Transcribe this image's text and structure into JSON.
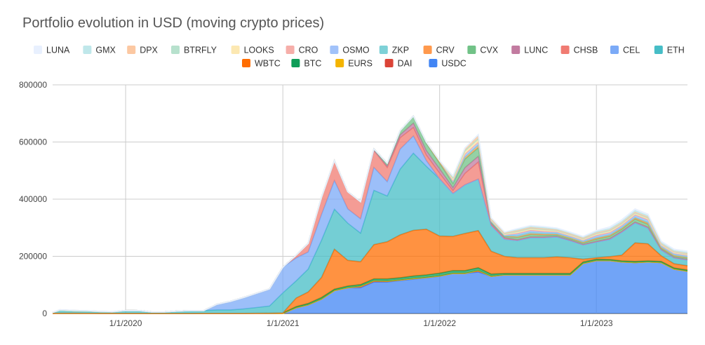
{
  "chart_data": {
    "type": "area",
    "stacked": true,
    "title": "Portfolio evolution in USD (moving crypto prices)",
    "xlabel": "",
    "ylabel": "",
    "ylim": [
      0,
      800000
    ],
    "y_ticks": [
      "0",
      "200000",
      "400000",
      "600000",
      "800000"
    ],
    "x_ticks": [
      "1/1/2020",
      "1/1/2021",
      "1/1/2022",
      "1/1/2023"
    ],
    "xlim": [
      "2019-07-15",
      "2023-08-01"
    ],
    "grid": true,
    "legend_position": "top",
    "x": [
      "2019-07-15",
      "2019-08-01",
      "2019-09-01",
      "2019-10-01",
      "2019-11-01",
      "2019-12-01",
      "2020-01-01",
      "2020-02-01",
      "2020-03-01",
      "2020-04-01",
      "2020-05-01",
      "2020-06-01",
      "2020-07-01",
      "2020-08-01",
      "2020-09-01",
      "2020-10-01",
      "2020-11-01",
      "2020-12-01",
      "2021-01-01",
      "2021-02-01",
      "2021-03-01",
      "2021-04-01",
      "2021-05-01",
      "2021-06-01",
      "2021-07-01",
      "2021-08-01",
      "2021-09-01",
      "2021-10-01",
      "2021-11-01",
      "2021-12-01",
      "2022-01-01",
      "2022-02-01",
      "2022-03-01",
      "2022-04-01",
      "2022-05-01",
      "2022-06-01",
      "2022-07-01",
      "2022-08-01",
      "2022-09-01",
      "2022-10-01",
      "2022-11-01",
      "2022-12-01",
      "2023-01-01",
      "2023-02-01",
      "2023-03-01",
      "2023-04-01",
      "2023-05-01",
      "2023-06-01",
      "2023-07-01",
      "2023-08-01"
    ],
    "series": [
      {
        "name": "USDC",
        "color": "#4285f4",
        "values": [
          0,
          0,
          0,
          0,
          0,
          0,
          0,
          0,
          0,
          0,
          0,
          0,
          0,
          0,
          0,
          0,
          0,
          0,
          0,
          20000,
          30000,
          50000,
          80000,
          90000,
          90000,
          110000,
          110000,
          115000,
          120000,
          125000,
          130000,
          140000,
          140000,
          145000,
          130000,
          135000,
          135000,
          135000,
          135000,
          135000,
          135000,
          175000,
          185000,
          185000,
          180000,
          178000,
          180000,
          178000,
          155000,
          148000
        ]
      },
      {
        "name": "DAI",
        "color": "#db4437",
        "values": [
          0,
          0,
          0,
          0,
          0,
          0,
          0,
          0,
          0,
          0,
          0,
          0,
          0,
          0,
          0,
          0,
          0,
          0,
          0,
          0,
          0,
          0,
          0,
          0,
          5000,
          4000,
          3000,
          2000,
          2000,
          1000,
          1000,
          0,
          0,
          5000,
          0,
          0,
          0,
          0,
          0,
          0,
          0,
          0,
          0,
          0,
          0,
          0,
          0,
          0,
          0,
          0
        ]
      },
      {
        "name": "EURS",
        "color": "#f4b400",
        "values": [
          0,
          0,
          0,
          0,
          0,
          0,
          0,
          0,
          0,
          0,
          0,
          0,
          0,
          0,
          0,
          0,
          0,
          0,
          0,
          0,
          0,
          0,
          0,
          0,
          0,
          0,
          0,
          0,
          0,
          0,
          0,
          0,
          0,
          0,
          0,
          0,
          0,
          0,
          0,
          0,
          0,
          0,
          0,
          0,
          0,
          0,
          0,
          0,
          0,
          0
        ]
      },
      {
        "name": "BTC",
        "color": "#0f9d58",
        "values": [
          500,
          1000,
          1000,
          800,
          600,
          500,
          500,
          400,
          300,
          300,
          300,
          300,
          400,
          500,
          500,
          600,
          800,
          1000,
          2000,
          4000,
          5000,
          6000,
          5000,
          6000,
          6000,
          7000,
          8000,
          8000,
          9000,
          9000,
          10000,
          10000,
          10000,
          10000,
          8000,
          5000,
          5000,
          5000,
          5000,
          5000,
          5000,
          5000,
          5000,
          4000,
          4000,
          4000,
          4000,
          4000,
          4000,
          4000
        ]
      },
      {
        "name": "WBTC",
        "color": "#ff6d01",
        "values": [
          0,
          0,
          0,
          0,
          0,
          0,
          0,
          0,
          0,
          0,
          0,
          0,
          0,
          0,
          0,
          0,
          0,
          0,
          0,
          30000,
          40000,
          70000,
          140000,
          90000,
          80000,
          120000,
          130000,
          150000,
          160000,
          160000,
          130000,
          120000,
          130000,
          130000,
          80000,
          60000,
          55000,
          55000,
          55000,
          58000,
          55000,
          10000,
          5000,
          10000,
          20000,
          65000,
          60000,
          20000,
          15000,
          15000
        ]
      },
      {
        "name": "ETH",
        "color": "#46bdc6",
        "values": [
          3000,
          10000,
          8000,
          8000,
          6000,
          5000,
          10000,
          10000,
          5000,
          5000,
          8000,
          10000,
          10000,
          12000,
          12000,
          15000,
          20000,
          25000,
          70000,
          60000,
          80000,
          130000,
          140000,
          130000,
          100000,
          190000,
          160000,
          230000,
          270000,
          220000,
          200000,
          150000,
          170000,
          180000,
          90000,
          60000,
          60000,
          70000,
          70000,
          70000,
          60000,
          50000,
          55000,
          60000,
          80000,
          70000,
          55000,
          20000,
          20000,
          20000
        ]
      },
      {
        "name": "CEL",
        "color": "#7baaf7",
        "values": [
          0,
          0,
          0,
          0,
          0,
          0,
          0,
          0,
          0,
          0,
          0,
          0,
          0,
          20000,
          30000,
          40000,
          50000,
          60000,
          90000,
          80000,
          60000,
          90000,
          100000,
          50000,
          50000,
          80000,
          50000,
          70000,
          60000,
          20000,
          0,
          0,
          0,
          0,
          0,
          0,
          0,
          0,
          0,
          0,
          0,
          0,
          0,
          0,
          0,
          0,
          0,
          0,
          0,
          0
        ]
      },
      {
        "name": "CHSB",
        "color": "#f07b72",
        "values": [
          0,
          0,
          0,
          0,
          0,
          0,
          0,
          0,
          0,
          0,
          0,
          0,
          0,
          0,
          0,
          0,
          0,
          0,
          0,
          10000,
          30000,
          60000,
          70000,
          60000,
          60000,
          60000,
          50000,
          40000,
          30000,
          20000,
          20000,
          10000,
          40000,
          60000,
          5000,
          5000,
          3000,
          3000,
          3000,
          2000,
          2000,
          2000,
          2000,
          3000,
          3000,
          3000,
          3000,
          2000,
          2000,
          2000
        ]
      },
      {
        "name": "LUNC",
        "color": "#c27ba0",
        "values": [
          0,
          0,
          0,
          0,
          0,
          0,
          0,
          0,
          0,
          0,
          0,
          0,
          0,
          0,
          0,
          0,
          0,
          0,
          0,
          0,
          0,
          0,
          0,
          0,
          0,
          0,
          5000,
          10000,
          15000,
          15000,
          15000,
          10000,
          20000,
          20000,
          2000,
          0,
          0,
          0,
          0,
          0,
          0,
          0,
          0,
          0,
          0,
          0,
          0,
          0,
          0,
          0
        ]
      },
      {
        "name": "CVX",
        "color": "#71c287",
        "values": [
          0,
          0,
          0,
          0,
          0,
          0,
          0,
          0,
          0,
          0,
          0,
          0,
          0,
          0,
          0,
          0,
          0,
          0,
          0,
          0,
          0,
          0,
          0,
          0,
          0,
          5000,
          10000,
          15000,
          25000,
          25000,
          20000,
          15000,
          30000,
          30000,
          5000,
          5000,
          8000,
          8000,
          6000,
          5000,
          5000,
          5000,
          8000,
          8000,
          8000,
          10000,
          10000,
          5000,
          5000,
          5000
        ]
      },
      {
        "name": "CRV",
        "color": "#ff994d",
        "values": [
          0,
          0,
          0,
          0,
          0,
          0,
          0,
          0,
          0,
          0,
          0,
          0,
          0,
          0,
          0,
          0,
          0,
          0,
          0,
          0,
          0,
          0,
          0,
          0,
          0,
          0,
          0,
          0,
          0,
          5000,
          8000,
          5000,
          8000,
          10000,
          2000,
          2000,
          2000,
          3000,
          3000,
          2000,
          2000,
          2000,
          3000,
          3000,
          3000,
          4000,
          4000,
          2000,
          2000,
          2000
        ]
      },
      {
        "name": "ZKP",
        "color": "#7ed1d7",
        "values": [
          0,
          0,
          0,
          0,
          0,
          0,
          0,
          0,
          0,
          0,
          0,
          0,
          0,
          0,
          0,
          0,
          0,
          0,
          0,
          0,
          0,
          0,
          0,
          0,
          0,
          0,
          0,
          0,
          0,
          0,
          0,
          0,
          0,
          0,
          0,
          0,
          5000,
          5000,
          4000,
          3000,
          3000,
          3000,
          3000,
          3000,
          3000,
          3000,
          4000,
          3000,
          3000,
          3000
        ]
      },
      {
        "name": "OSMO",
        "color": "#a1c2fa",
        "values": [
          0,
          0,
          0,
          0,
          0,
          0,
          0,
          0,
          0,
          0,
          0,
          0,
          0,
          0,
          0,
          0,
          0,
          0,
          0,
          0,
          0,
          0,
          0,
          0,
          0,
          0,
          0,
          0,
          0,
          0,
          0,
          5000,
          10000,
          10000,
          3000,
          3000,
          5000,
          5000,
          4000,
          4000,
          3000,
          3000,
          5000,
          5000,
          5000,
          6000,
          6000,
          3000,
          3000,
          3000
        ]
      },
      {
        "name": "CRO",
        "color": "#f6aea9",
        "values": [
          0,
          0,
          0,
          0,
          0,
          0,
          0,
          0,
          0,
          0,
          0,
          0,
          0,
          0,
          0,
          0,
          0,
          0,
          0,
          0,
          0,
          0,
          0,
          0,
          0,
          0,
          0,
          0,
          0,
          0,
          0,
          0,
          0,
          0,
          0,
          0,
          3000,
          3000,
          3000,
          2000,
          2000,
          2000,
          3000,
          3000,
          3000,
          3000,
          3000,
          2000,
          2000,
          2000
        ]
      },
      {
        "name": "LOOKS",
        "color": "#fce8b2",
        "values": [
          0,
          0,
          0,
          0,
          0,
          0,
          0,
          0,
          0,
          0,
          0,
          0,
          0,
          0,
          0,
          0,
          0,
          0,
          0,
          0,
          0,
          0,
          0,
          0,
          0,
          0,
          0,
          0,
          0,
          0,
          0,
          5000,
          8000,
          8000,
          2000,
          2000,
          3000,
          3000,
          3000,
          2000,
          2000,
          2000,
          3000,
          3000,
          3000,
          3000,
          3000,
          2000,
          2000,
          2000
        ]
      },
      {
        "name": "BTRFLY",
        "color": "#b7e1cd",
        "values": [
          0,
          0,
          0,
          0,
          0,
          0,
          0,
          0,
          0,
          0,
          0,
          0,
          0,
          0,
          0,
          0,
          0,
          0,
          0,
          0,
          0,
          0,
          0,
          0,
          0,
          0,
          0,
          0,
          0,
          0,
          0,
          5000,
          5000,
          5000,
          2000,
          2000,
          3000,
          3000,
          3000,
          2000,
          2000,
          2000,
          3000,
          3000,
          3000,
          3000,
          3000,
          2000,
          2000,
          2000
        ]
      },
      {
        "name": "DPX",
        "color": "#fcc8a2",
        "values": [
          0,
          2000,
          2000,
          1000,
          1000,
          1000,
          0,
          0,
          0,
          0,
          0,
          0,
          0,
          0,
          0,
          0,
          0,
          0,
          0,
          0,
          0,
          0,
          0,
          0,
          0,
          0,
          0,
          0,
          0,
          0,
          0,
          5000,
          8000,
          8000,
          3000,
          3000,
          3000,
          3000,
          3000,
          3000,
          3000,
          3000,
          3000,
          3000,
          3000,
          3000,
          3000,
          2000,
          2000,
          2000
        ]
      },
      {
        "name": "GMX",
        "color": "#bfe7ea",
        "values": [
          0,
          0,
          0,
          0,
          0,
          0,
          0,
          0,
          0,
          0,
          0,
          0,
          0,
          0,
          0,
          0,
          0,
          0,
          0,
          0,
          0,
          0,
          0,
          0,
          0,
          0,
          0,
          0,
          0,
          0,
          0,
          0,
          0,
          5000,
          3000,
          3000,
          4000,
          4000,
          4000,
          3000,
          3000,
          3000,
          4000,
          5000,
          5000,
          6000,
          5000,
          4000,
          4000,
          4000
        ]
      },
      {
        "name": "LUNA",
        "color": "#e8f0fe",
        "values": [
          0,
          0,
          0,
          0,
          0,
          0,
          0,
          0,
          0,
          0,
          0,
          0,
          0,
          0,
          0,
          0,
          0,
          0,
          0,
          0,
          0,
          0,
          0,
          0,
          0,
          0,
          0,
          0,
          0,
          0,
          0,
          0,
          0,
          0,
          0,
          0,
          3000,
          3000,
          3000,
          3000,
          3000,
          3000,
          3000,
          5000,
          5000,
          5000,
          5000,
          4000,
          4000,
          4000
        ]
      }
    ],
    "legend": [
      "LUNA",
      "GMX",
      "DPX",
      "BTRFLY",
      "LOOKS",
      "CRO",
      "OSMO",
      "ZKP",
      "CRV",
      "CVX",
      "LUNC",
      "CHSB",
      "CEL",
      "ETH",
      "WBTC",
      "BTC",
      "EURS",
      "DAI",
      "USDC"
    ]
  }
}
